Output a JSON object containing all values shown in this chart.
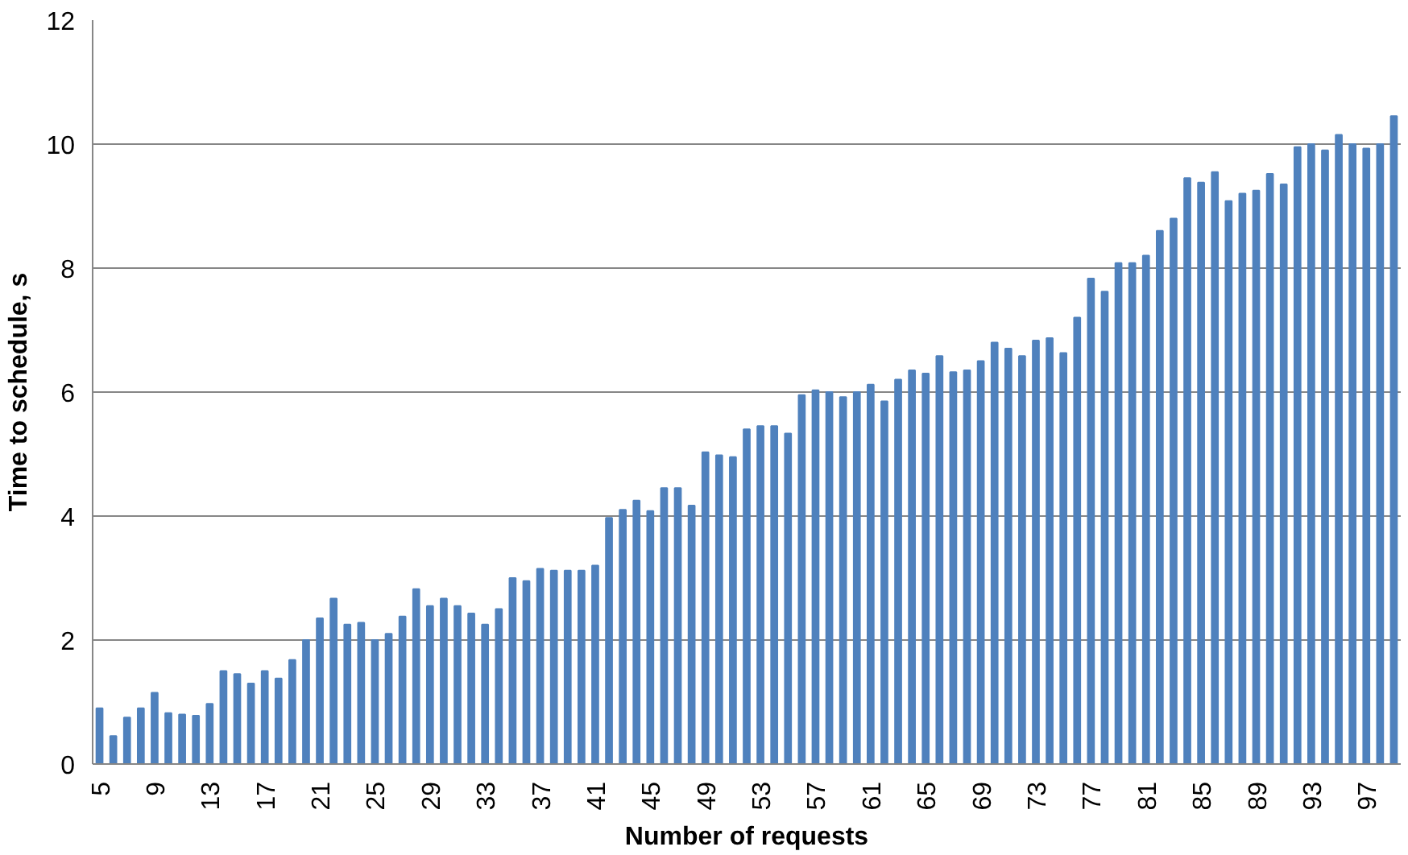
{
  "chart_data": {
    "type": "bar",
    "xlabel": "Number of requests",
    "ylabel": "Time to schedule, s",
    "categories": [
      "5",
      null,
      null,
      null,
      "9",
      null,
      null,
      null,
      "13",
      null,
      null,
      null,
      "17",
      null,
      null,
      null,
      "21",
      null,
      null,
      null,
      "25",
      null,
      null,
      null,
      "29",
      null,
      null,
      null,
      "33",
      null,
      null,
      null,
      "37",
      null,
      null,
      null,
      "41",
      null,
      null,
      null,
      "45",
      null,
      null,
      null,
      "49",
      null,
      null,
      null,
      "53",
      null,
      null,
      null,
      "57",
      null,
      null,
      null,
      "61",
      null,
      null,
      null,
      "65",
      null,
      null,
      null,
      "69",
      null,
      null,
      null,
      "73",
      null,
      null,
      null,
      "77",
      null,
      null,
      null,
      "81",
      null,
      null,
      null,
      "85",
      null,
      null,
      null,
      "89",
      null,
      null,
      null,
      "93",
      null,
      null,
      null,
      "97",
      null,
      null
    ],
    "values": [
      0.9,
      0.45,
      0.75,
      0.9,
      1.15,
      0.82,
      0.8,
      0.78,
      0.97,
      1.5,
      1.45,
      1.3,
      1.5,
      1.38,
      1.68,
      2.0,
      2.35,
      2.67,
      2.25,
      2.28,
      2.0,
      2.1,
      2.38,
      2.82,
      2.55,
      2.67,
      2.55,
      2.43,
      2.25,
      2.5,
      3.0,
      2.95,
      3.15,
      3.12,
      3.12,
      3.12,
      3.2,
      3.97,
      4.1,
      4.25,
      4.08,
      4.45,
      4.45,
      4.17,
      5.03,
      4.98,
      4.95,
      5.4,
      5.45,
      5.45,
      5.33,
      5.95,
      6.03,
      6.0,
      5.92,
      6.0,
      6.12,
      5.85,
      6.2,
      6.35,
      6.3,
      6.58,
      6.32,
      6.35,
      6.5,
      6.8,
      6.7,
      6.58,
      6.83,
      6.87,
      6.63,
      7.2,
      7.83,
      7.62,
      8.08,
      8.08,
      8.2,
      8.6,
      8.8,
      9.45,
      9.38,
      9.55,
      9.08,
      9.2,
      9.25,
      9.52,
      9.35,
      9.95,
      10.0,
      9.9,
      10.15,
      10.0,
      9.93,
      10.0,
      10.45
    ],
    "color": "#4f81bd",
    "ylim": [
      0,
      12
    ],
    "yticks": [
      0,
      2,
      4,
      6,
      8,
      10,
      12
    ],
    "grid": "y"
  }
}
